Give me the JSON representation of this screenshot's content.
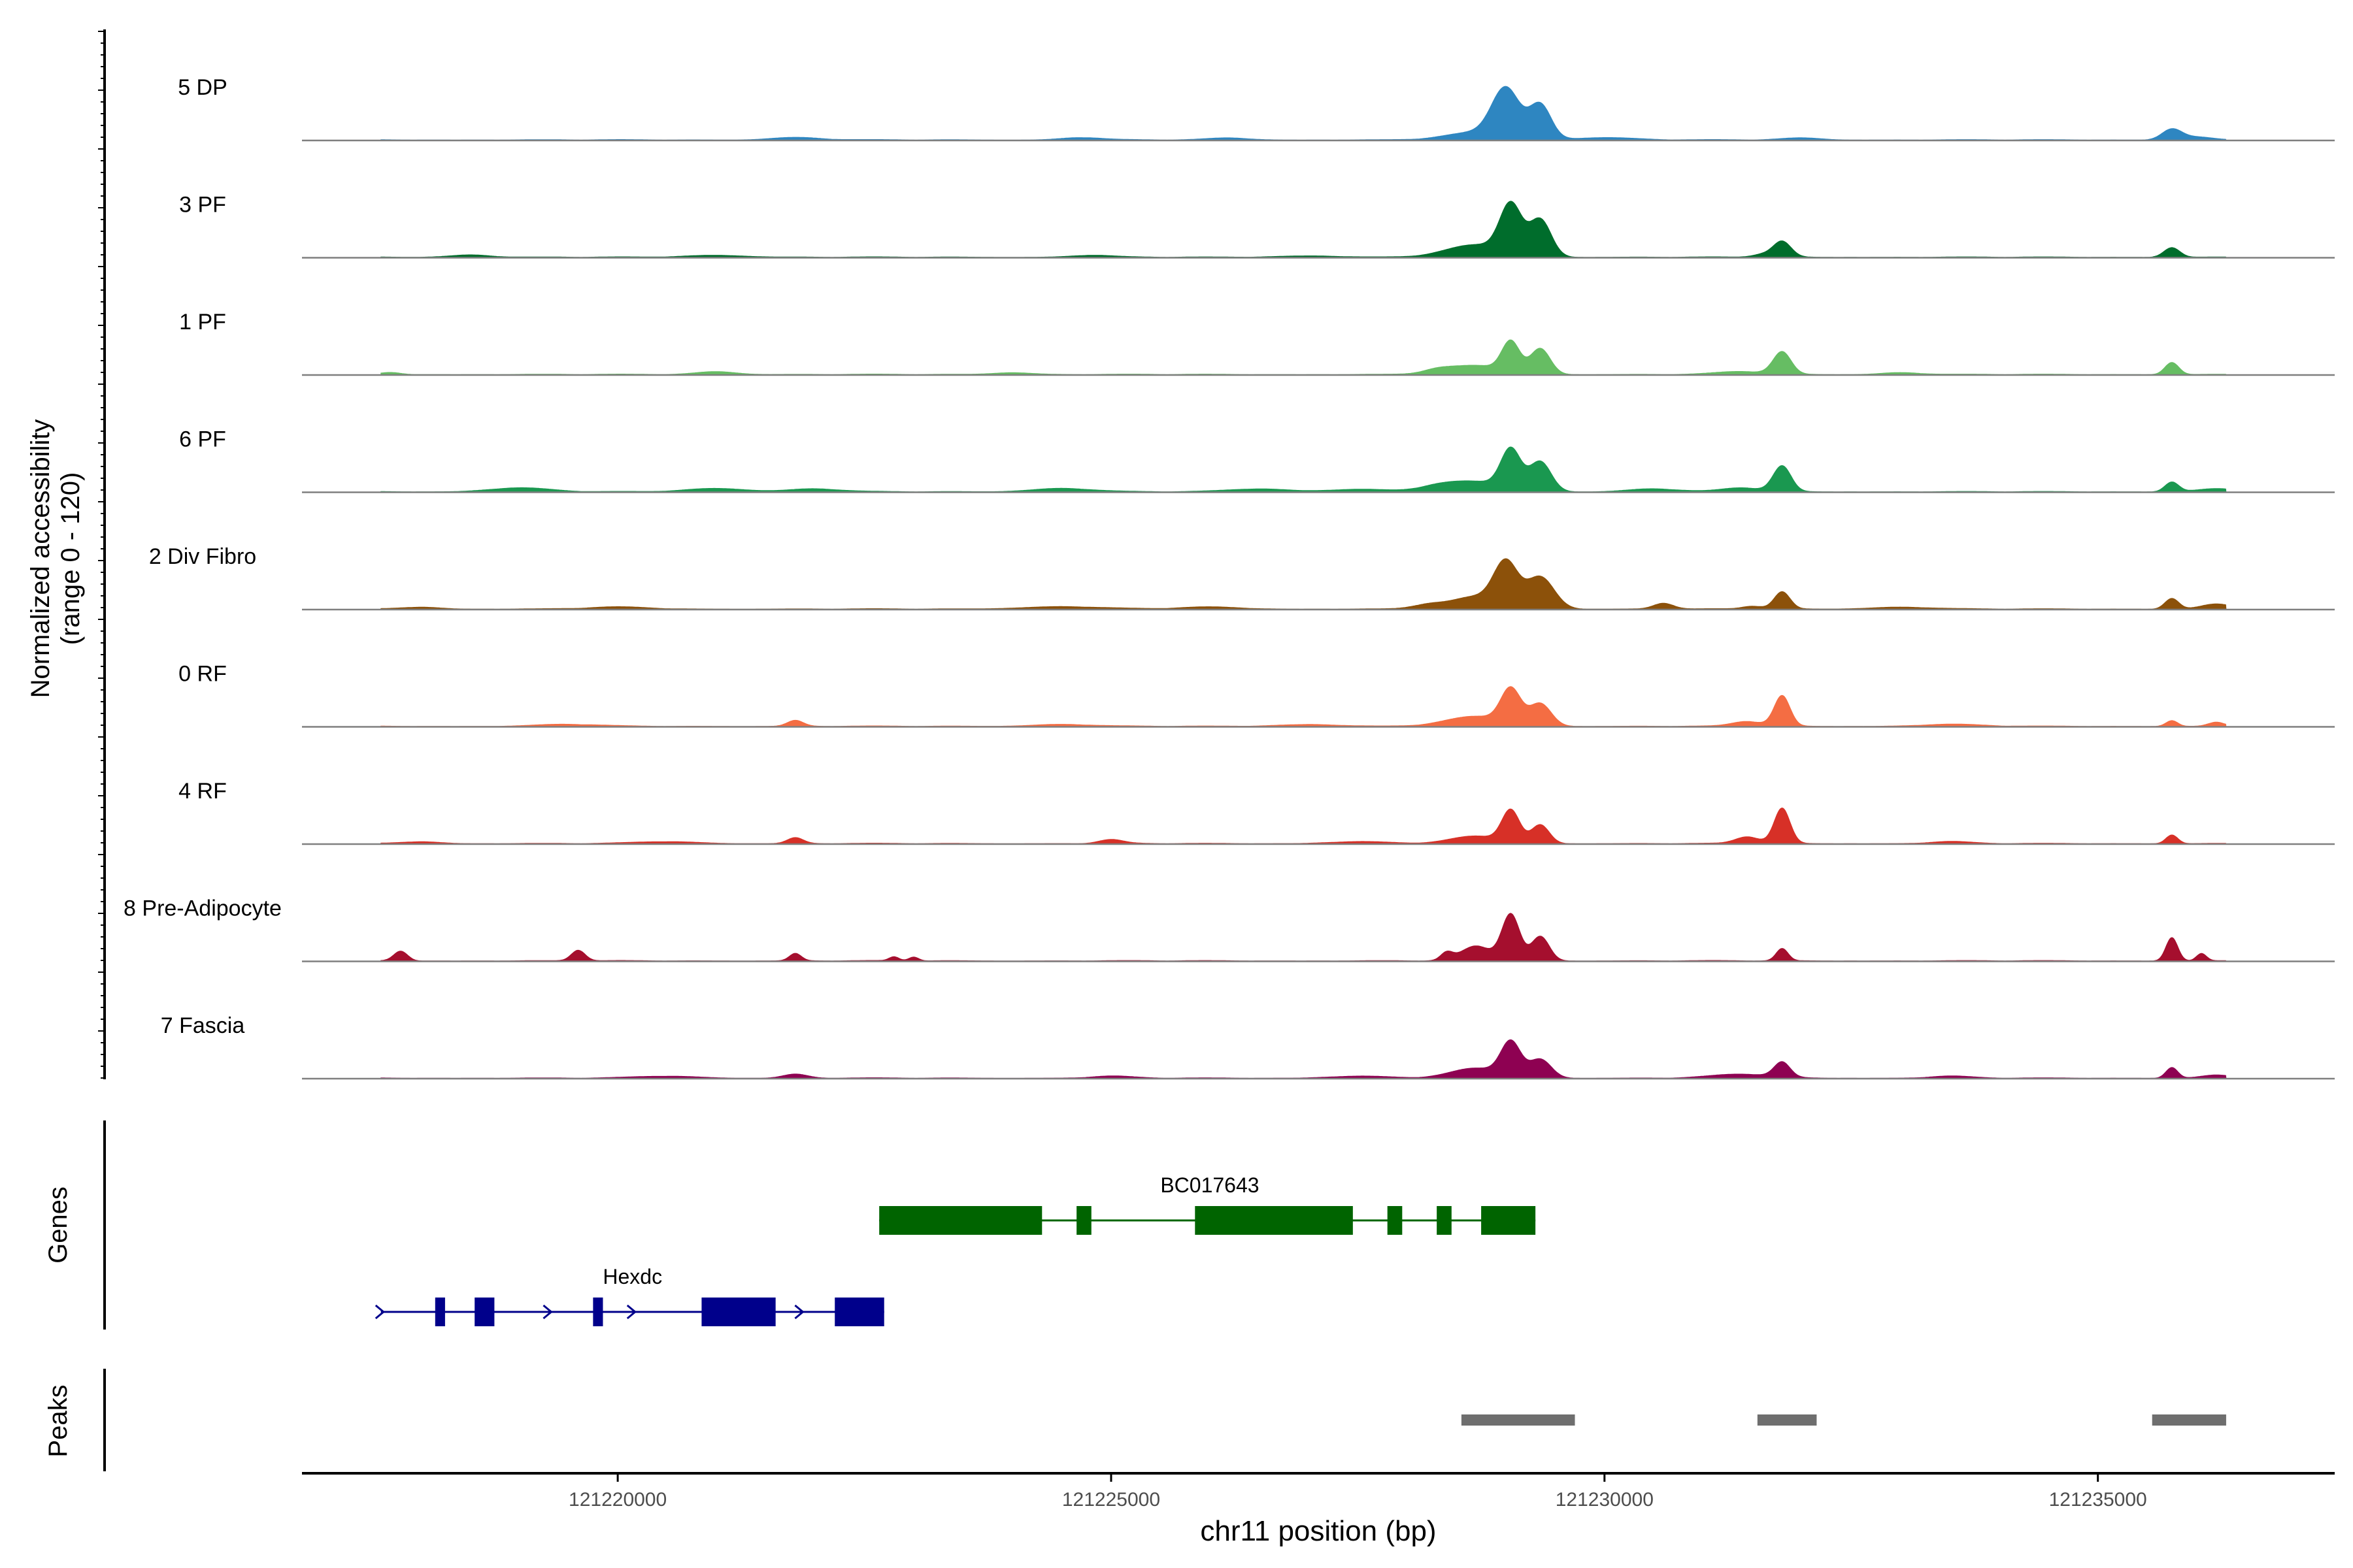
{
  "chart_data": {
    "type": "area",
    "title": "",
    "xlabel": "chr11 position (bp)",
    "ylabel": "Normalized accessibility",
    "ylabel_sub": "(range 0 - 120)",
    "ylim": [
      0,
      120
    ],
    "xlim": [
      121216800,
      121237400
    ],
    "x_ticks": [
      121220000,
      121225000,
      121230000,
      121235000
    ],
    "x_tick_labels": [
      "121220000",
      "121225000",
      "121230000",
      "121235000"
    ],
    "baseline": 2,
    "series": [
      {
        "name": "5 DP",
        "color": "#2E86C1",
        "peaks": [
          [
            121229000,
            100,
            140
          ],
          [
            121229350,
            70,
            110
          ],
          [
            121228700,
            15,
            300
          ],
          [
            121235750,
            22,
            100
          ],
          [
            121236000,
            6,
            150
          ],
          [
            121230000,
            5,
            300
          ],
          [
            121224700,
            5,
            200
          ],
          [
            121226200,
            4,
            200
          ],
          [
            121232000,
            4,
            200
          ],
          [
            121221800,
            5,
            250
          ]
        ]
      },
      {
        "name": "3 PF",
        "color": "#006D2C",
        "peaks": [
          [
            121229050,
            100,
            110
          ],
          [
            121229350,
            75,
            110
          ],
          [
            121228700,
            25,
            300
          ],
          [
            121231800,
            32,
            90
          ],
          [
            121231600,
            6,
            100
          ],
          [
            121235750,
            20,
            80
          ],
          [
            121218500,
            5,
            200
          ],
          [
            121221000,
            4,
            300
          ],
          [
            121224800,
            4,
            200
          ],
          [
            121227000,
            3,
            300
          ]
        ]
      },
      {
        "name": "1 PF",
        "color": "#66BD63",
        "peaks": [
          [
            121229050,
            62,
            90
          ],
          [
            121229350,
            52,
            100
          ],
          [
            121228700,
            18,
            280
          ],
          [
            121228300,
            7,
            150
          ],
          [
            121231800,
            45,
            90
          ],
          [
            121231400,
            6,
            250
          ],
          [
            121235750,
            25,
            70
          ],
          [
            121221000,
            6,
            200
          ],
          [
            121224000,
            4,
            200
          ],
          [
            121233000,
            4,
            200
          ],
          [
            121217700,
            4,
            100
          ]
        ]
      },
      {
        "name": "6 PF",
        "color": "#1A9850",
        "peaks": [
          [
            121229050,
            80,
            100
          ],
          [
            121229350,
            60,
            110
          ],
          [
            121228700,
            20,
            300
          ],
          [
            121228300,
            8,
            200
          ],
          [
            121231800,
            52,
            90
          ],
          [
            121231400,
            8,
            200
          ],
          [
            121235750,
            20,
            70
          ],
          [
            121236200,
            6,
            200
          ],
          [
            121219000,
            8,
            300
          ],
          [
            121221000,
            7,
            300
          ],
          [
            121222000,
            6,
            250
          ],
          [
            121224500,
            7,
            300
          ],
          [
            121226500,
            6,
            300
          ],
          [
            121227500,
            5,
            300
          ],
          [
            121230500,
            6,
            250
          ]
        ]
      },
      {
        "name": "2 Div Fibro",
        "color": "#8C510A",
        "peaks": [
          [
            121229000,
            88,
            120
          ],
          [
            121229350,
            65,
            140
          ],
          [
            121228700,
            25,
            250
          ],
          [
            121228200,
            8,
            150
          ],
          [
            121231800,
            35,
            80
          ],
          [
            121230600,
            12,
            100
          ],
          [
            121231500,
            6,
            100
          ],
          [
            121235750,
            22,
            70
          ],
          [
            121236200,
            10,
            150
          ],
          [
            121218000,
            4,
            200
          ],
          [
            121220000,
            4,
            300
          ],
          [
            121224500,
            5,
            400
          ],
          [
            121226000,
            4,
            300
          ],
          [
            121233000,
            4,
            300
          ]
        ]
      },
      {
        "name": "0 RF",
        "color": "#F46D43",
        "peaks": [
          [
            121229050,
            70,
            100
          ],
          [
            121229350,
            45,
            110
          ],
          [
            121228700,
            20,
            300
          ],
          [
            121231800,
            62,
            80
          ],
          [
            121231450,
            10,
            150
          ],
          [
            121235750,
            12,
            60
          ],
          [
            121236200,
            8,
            80
          ],
          [
            121221800,
            12,
            80
          ],
          [
            121219500,
            4,
            300
          ],
          [
            121224500,
            4,
            300
          ],
          [
            121227000,
            4,
            300
          ],
          [
            121233500,
            4,
            300
          ]
        ]
      },
      {
        "name": "4 RF",
        "color": "#D73027",
        "peaks": [
          [
            121229050,
            65,
            90
          ],
          [
            121229350,
            38,
            90
          ],
          [
            121228700,
            15,
            250
          ],
          [
            121231800,
            72,
            80
          ],
          [
            121231450,
            14,
            120
          ],
          [
            121235750,
            18,
            60
          ],
          [
            121221800,
            12,
            80
          ],
          [
            121225000,
            8,
            120
          ],
          [
            121218000,
            4,
            200
          ],
          [
            121220500,
            4,
            300
          ],
          [
            121227500,
            4,
            300
          ],
          [
            121233500,
            4,
            200
          ]
        ]
      },
      {
        "name": "8 Pre-Adipocyte",
        "color": "#A50F2E",
        "peaks": [
          [
            121229050,
            95,
            90
          ],
          [
            121229350,
            50,
            90
          ],
          [
            121228700,
            30,
            150
          ],
          [
            121228400,
            15,
            60
          ],
          [
            121231800,
            25,
            60
          ],
          [
            121235750,
            48,
            60
          ],
          [
            121236050,
            15,
            50
          ],
          [
            121217800,
            20,
            70
          ],
          [
            121219600,
            22,
            70
          ],
          [
            121221800,
            15,
            60
          ],
          [
            121222800,
            8,
            50
          ],
          [
            121223000,
            8,
            50
          ]
        ]
      },
      {
        "name": "7 Fascia",
        "color": "#8E0152",
        "peaks": [
          [
            121229050,
            70,
            100
          ],
          [
            121229350,
            38,
            110
          ],
          [
            121228700,
            20,
            250
          ],
          [
            121231800,
            30,
            80
          ],
          [
            121231400,
            8,
            300
          ],
          [
            121235750,
            22,
            60
          ],
          [
            121236200,
            6,
            150
          ],
          [
            121221800,
            8,
            120
          ],
          [
            121220500,
            4,
            300
          ],
          [
            121225000,
            4,
            200
          ],
          [
            121227500,
            4,
            300
          ],
          [
            121233500,
            4,
            200
          ]
        ]
      }
    ],
    "genes": [
      {
        "name": "BC017643",
        "strand": "-",
        "start": 121222650,
        "end": 121229300,
        "color": "#006400",
        "row": 1,
        "exons": [
          [
            121222650,
            121224300
          ],
          [
            121224650,
            121224800
          ],
          [
            121225850,
            121227450
          ],
          [
            121227800,
            121227950
          ],
          [
            121228300,
            121228450
          ],
          [
            121228750,
            121229300
          ]
        ]
      },
      {
        "name": "Hexdc",
        "strand": "+",
        "start": 121217600,
        "end": 121222700,
        "color": "#00008B",
        "row": 2,
        "exons": [
          [
            121218150,
            121218250
          ],
          [
            121218550,
            121218750
          ],
          [
            121219750,
            121219850
          ],
          [
            121220850,
            121221600
          ],
          [
            121222200,
            121222700
          ]
        ]
      }
    ],
    "peaks_track": [
      [
        121228550,
        121229700
      ],
      [
        121231550,
        121232150
      ],
      [
        121235550,
        121236300
      ]
    ],
    "peaks_color": "#6E6E6E",
    "panel_titles": {
      "genes": "Genes",
      "peaks": "Peaks"
    }
  }
}
